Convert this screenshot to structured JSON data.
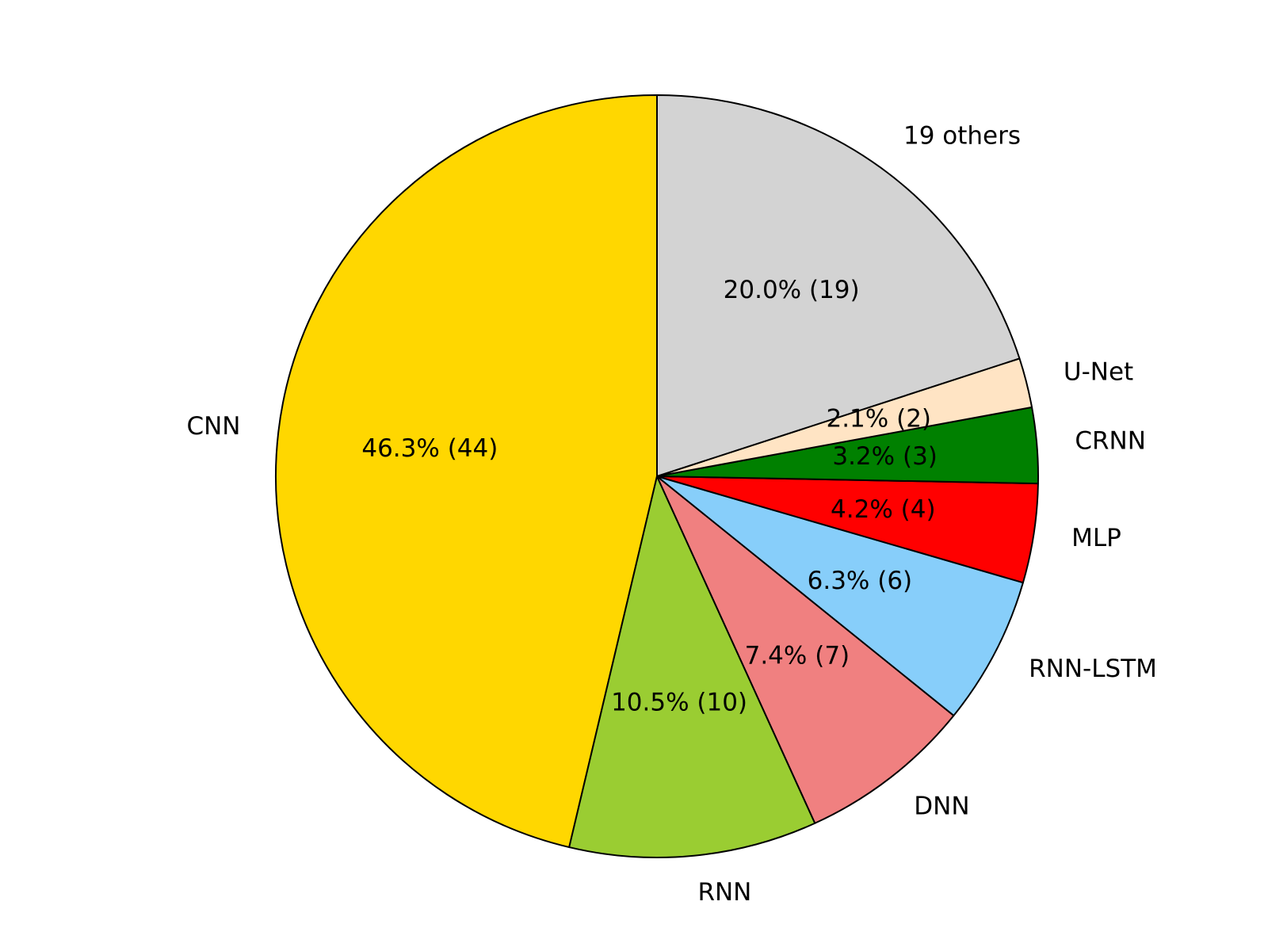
{
  "chart_data": {
    "type": "pie",
    "categories": [
      "CNN",
      "RNN",
      "DNN",
      "RNN-LSTM",
      "MLP",
      "CRNN",
      "U-Net",
      "19 others"
    ],
    "values": [
      46.3,
      10.5,
      7.4,
      6.3,
      4.2,
      3.2,
      2.1,
      20.0
    ],
    "value_labels": [
      "46.3%  (44)",
      "10.5%  (10)",
      "7.4%  (7)",
      "6.3%  (6)",
      "4.2%  (4)",
      "3.2%  (3)",
      "2.1%  (2)",
      "20.0%  (19)"
    ],
    "colors": [
      "#ffd700",
      "#9acd32",
      "#f08080",
      "#87cefa",
      "#ff0000",
      "#008000",
      "#ffe4c4",
      "#d3d3d3"
    ]
  }
}
